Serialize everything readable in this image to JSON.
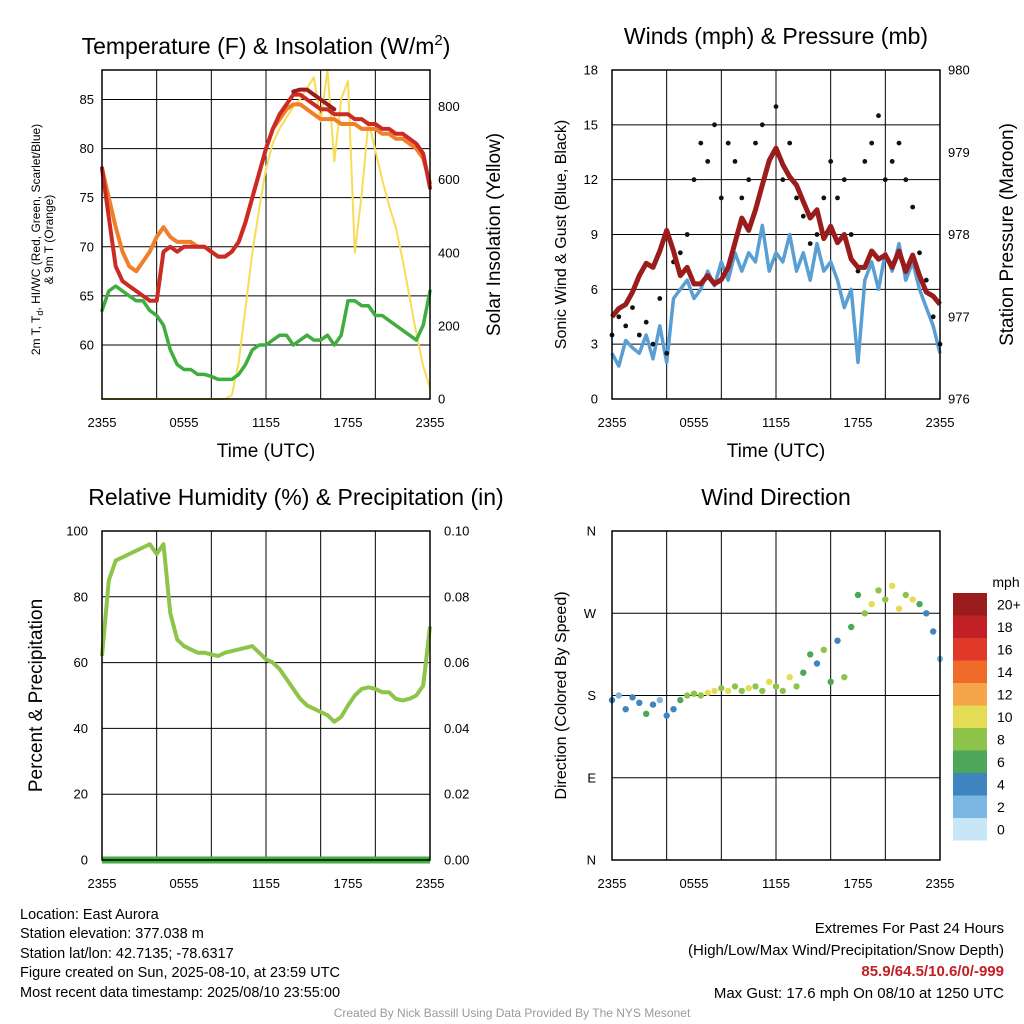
{
  "colors": {
    "temp": "#cc2a24",
    "dewpoint": "#3fae3f",
    "temp9m": "#f07f2a",
    "insolation": "#f7dc55",
    "gust": "#111111",
    "wind": "#5a9fd4",
    "pressure": "#9b1c1c",
    "rh": "#8ec44a",
    "precip": "#3fae3f",
    "grid": "#000000"
  },
  "chart_data": [
    {
      "id": "temp",
      "type": "line",
      "title": "Temperature (F) & Insolation (W/m",
      "title_sup": "2",
      "title_end": ")",
      "xlabel": "Time (UTC)",
      "ylabel_lines": [
        "2m T, T",
        "d",
        ", HI/WC (Red, Green, Scarlet/Blue)",
        "& 9m T (Orange)"
      ],
      "y2label": "Solar Insolation (Yellow)",
      "xticks": [
        "2355",
        "0555",
        "1155",
        "1755",
        "2355"
      ],
      "x": [
        0,
        0.5,
        1,
        1.5,
        2,
        2.5,
        3,
        3.5,
        4,
        4.5,
        5,
        5.5,
        6,
        6.5,
        7,
        7.5,
        8,
        8.5,
        9,
        9.5,
        10,
        10.5,
        11,
        11.5,
        12,
        12.5,
        13,
        13.5,
        14,
        14.5,
        15,
        15.5,
        16,
        16.5,
        17,
        17.5,
        18,
        18.5,
        19,
        19.5,
        20,
        20.5,
        21,
        21.5,
        22,
        22.5,
        23,
        23.5,
        24
      ],
      "ylim": [
        54.5,
        88
      ],
      "yticks": [
        60,
        65,
        70,
        75,
        80,
        85
      ],
      "y2lim": [
        0,
        900
      ],
      "y2ticks": [
        0,
        200,
        400,
        600,
        800
      ],
      "series": [
        {
          "name": "Temperature",
          "axis": "left",
          "color": "#cc2a24",
          "width": 4,
          "values": [
            78,
            73,
            68,
            66.5,
            66,
            65.5,
            65,
            64.5,
            64.5,
            69.5,
            70,
            69.5,
            70,
            70,
            70,
            70,
            69.5,
            69,
            69,
            69.5,
            70.5,
            72.5,
            75,
            77.5,
            80,
            82,
            83.5,
            84.5,
            85.5,
            85.5,
            85,
            84.5,
            84,
            84,
            83.5,
            83.5,
            83.5,
            83,
            83,
            82.5,
            82.5,
            82,
            82,
            81.5,
            81.5,
            81,
            80.5,
            79.5,
            76
          ]
        },
        {
          "name": "Heat Index",
          "axis": "left",
          "color": "#9b1c1c",
          "width": 4,
          "values": [
            null,
            null,
            null,
            null,
            null,
            null,
            null,
            null,
            null,
            null,
            null,
            null,
            null,
            null,
            null,
            null,
            null,
            null,
            null,
            null,
            null,
            null,
            null,
            null,
            null,
            null,
            null,
            null,
            85.8,
            86,
            86,
            85.5,
            85,
            84.5,
            84,
            null,
            null,
            null,
            null,
            null,
            null,
            null,
            null,
            null,
            null,
            null,
            null,
            null,
            null
          ]
        },
        {
          "name": "9m Temperature",
          "axis": "left",
          "color": "#f07f2a",
          "width": 4,
          "values": [
            78,
            75,
            72,
            69.5,
            68,
            67.5,
            68.5,
            69.5,
            71,
            72,
            71,
            70.5,
            70.5,
            70.5,
            70,
            70,
            69.5,
            69,
            69,
            69.5,
            70.5,
            72.5,
            75,
            77.5,
            80,
            82,
            83,
            84,
            84.5,
            84.5,
            84,
            83.5,
            83,
            83,
            83,
            82.5,
            82.5,
            82.5,
            82,
            82,
            82,
            81.5,
            81.5,
            81,
            81,
            80.5,
            80,
            79,
            76.5
          ]
        },
        {
          "name": "Dewpoint",
          "axis": "left",
          "color": "#3fae3f",
          "width": 3.5,
          "values": [
            63.5,
            65.5,
            66,
            65.5,
            65,
            64.5,
            64.5,
            63.5,
            63,
            62,
            59.5,
            58,
            57.5,
            57.5,
            57,
            57,
            56.8,
            56.5,
            56.5,
            56.5,
            57,
            58,
            59.5,
            60,
            60,
            60.5,
            61,
            61,
            60,
            60.5,
            61,
            60.5,
            60.5,
            61,
            60,
            61,
            64.5,
            64.5,
            64,
            64,
            63,
            63,
            62.5,
            62,
            61.5,
            61,
            60.5,
            62,
            65.5
          ]
        },
        {
          "name": "Solar Insolation",
          "axis": "right",
          "color": "#f7dc55",
          "width": 2,
          "values": [
            0,
            0,
            0,
            0,
            0,
            0,
            0,
            0,
            0,
            0,
            0,
            0,
            0,
            0,
            0,
            0,
            0,
            0,
            0,
            10,
            100,
            250,
            400,
            520,
            630,
            700,
            740,
            770,
            800,
            820,
            850,
            880,
            760,
            900,
            650,
            820,
            870,
            400,
            560,
            760,
            680,
            600,
            530,
            470,
            380,
            280,
            180,
            90,
            30
          ]
        }
      ]
    },
    {
      "id": "wind",
      "type": "line",
      "title": "Winds (mph) & Pressure (mb)",
      "xlabel": "Time (UTC)",
      "ylabel": "Sonic Wind & Gust (Blue, Black)",
      "y2label": "Station Pressure (Maroon)",
      "xticks": [
        "2355",
        "0555",
        "1155",
        "1755",
        "2355"
      ],
      "x": [
        0,
        0.5,
        1,
        1.5,
        2,
        2.5,
        3,
        3.5,
        4,
        4.5,
        5,
        5.5,
        6,
        6.5,
        7,
        7.5,
        8,
        8.5,
        9,
        9.5,
        10,
        10.5,
        11,
        11.5,
        12,
        12.5,
        13,
        13.5,
        14,
        14.5,
        15,
        15.5,
        16,
        16.5,
        17,
        17.5,
        18,
        18.5,
        19,
        19.5,
        20,
        20.5,
        21,
        21.5,
        22,
        22.5,
        23,
        23.5,
        24
      ],
      "ylim": [
        0,
        18
      ],
      "yticks": [
        0,
        3,
        6,
        9,
        12,
        15,
        18
      ],
      "y2lim": [
        976,
        980
      ],
      "y2ticks": [
        976,
        977,
        978,
        979,
        980
      ],
      "series": [
        {
          "name": "Sonic Wind",
          "axis": "left",
          "color": "#5a9fd4",
          "width": 3.5,
          "values": [
            2.5,
            1.8,
            3.2,
            2.8,
            2.5,
            3.5,
            2.2,
            4,
            2,
            5.5,
            6,
            6.5,
            5.5,
            6,
            7,
            6.2,
            7.5,
            6.5,
            8,
            7,
            8,
            7.5,
            9.5,
            7,
            8,
            7.5,
            9,
            7,
            8,
            6.5,
            8.5,
            7,
            7.5,
            6.5,
            5,
            6,
            2,
            6.5,
            7.5,
            6,
            8,
            7,
            8.5,
            6.5,
            7.5,
            6,
            5,
            4,
            2.5
          ]
        },
        {
          "name": "Station Pressure",
          "axis": "right",
          "color": "#9b1c1c",
          "width": 5,
          "values": [
            977,
            977.1,
            977.15,
            977.3,
            977.5,
            977.65,
            977.6,
            977.8,
            978.05,
            977.8,
            977.5,
            977.6,
            977.4,
            977.4,
            977.5,
            977.4,
            977.45,
            977.6,
            977.9,
            978.2,
            978.05,
            978.3,
            978.6,
            978.9,
            979.05,
            978.85,
            978.7,
            978.6,
            978.4,
            978.2,
            978.3,
            977.95,
            978.1,
            977.9,
            978.0,
            977.7,
            977.6,
            977.6,
            977.8,
            977.7,
            977.75,
            977.6,
            977.8,
            977.55,
            977.75,
            977.5,
            977.3,
            977.25,
            977.15
          ]
        },
        {
          "name": "Gust",
          "axis": "left",
          "color": "#111111",
          "style": "dots",
          "values": [
            3.5,
            4.5,
            4,
            5,
            3.5,
            4.2,
            3,
            5.5,
            2.5,
            7.5,
            8,
            9,
            12,
            14,
            13,
            15,
            11,
            14,
            13,
            11,
            12,
            14,
            15,
            13,
            16,
            12,
            14,
            11,
            10,
            8.5,
            9,
            11,
            13,
            11,
            12,
            9,
            7,
            13,
            14,
            15.5,
            12,
            13,
            14,
            12,
            10.5,
            8,
            6.5,
            4.5,
            3
          ]
        }
      ]
    },
    {
      "id": "rh",
      "type": "line",
      "title": "Relative Humidity (%) & Precipitation (in)",
      "ylabel": "Percent & Precipitation",
      "xticks": [
        "2355",
        "0555",
        "1155",
        "1755",
        "2355"
      ],
      "x": [
        0,
        0.5,
        1,
        1.5,
        2,
        2.5,
        3,
        3.5,
        4,
        4.5,
        5,
        5.5,
        6,
        6.5,
        7,
        7.5,
        8,
        8.5,
        9,
        9.5,
        10,
        10.5,
        11,
        11.5,
        12,
        12.5,
        13,
        13.5,
        14,
        14.5,
        15,
        15.5,
        16,
        16.5,
        17,
        17.5,
        18,
        18.5,
        19,
        19.5,
        20,
        20.5,
        21,
        21.5,
        22,
        22.5,
        23,
        23.5,
        24
      ],
      "ylim": [
        0,
        100
      ],
      "yticks": [
        0,
        20,
        40,
        60,
        80,
        100
      ],
      "y2lim": [
        0,
        0.1
      ],
      "y2ticks": [
        "0.00",
        "0.02",
        "0.04",
        "0.06",
        "0.08",
        "0.10"
      ],
      "series": [
        {
          "name": "Relative Humidity",
          "axis": "left",
          "color": "#8ec44a",
          "width": 4,
          "values": [
            62,
            85,
            91,
            92,
            93,
            94,
            95,
            96,
            93,
            96,
            75,
            67,
            65,
            64,
            63,
            63,
            62.5,
            62,
            63,
            63.5,
            64,
            64.5,
            65,
            63,
            61,
            60,
            58,
            55,
            52,
            49,
            47,
            46,
            45,
            44,
            42,
            43.5,
            47,
            50,
            52,
            52.5,
            52,
            51,
            51,
            49,
            48.5,
            49,
            50,
            53,
            71
          ]
        },
        {
          "name": "Precipitation",
          "axis": "right",
          "color": "#3fae3f",
          "width": 7,
          "values": [
            0,
            0,
            0,
            0,
            0,
            0,
            0,
            0,
            0,
            0,
            0,
            0,
            0,
            0,
            0,
            0,
            0,
            0,
            0,
            0,
            0,
            0,
            0,
            0,
            0,
            0,
            0,
            0,
            0,
            0,
            0,
            0,
            0,
            0,
            0,
            0,
            0,
            0,
            0,
            0,
            0,
            0,
            0,
            0,
            0,
            0,
            0,
            0,
            0
          ]
        }
      ]
    },
    {
      "id": "dir",
      "type": "scatter",
      "title": "Wind Direction",
      "ylabel": "Direction (Colored By Speed)",
      "xticks": [
        "2355",
        "0555",
        "1155",
        "1755",
        "2355"
      ],
      "ylim": [
        0,
        360
      ],
      "yticks": [
        "N",
        "E",
        "S",
        "W",
        "N"
      ],
      "x": [
        0,
        0.5,
        1,
        1.5,
        2,
        2.5,
        3,
        3.5,
        4,
        4.5,
        5,
        5.5,
        6,
        6.5,
        7,
        7.5,
        8,
        8.5,
        9,
        9.5,
        10,
        10.5,
        11,
        11.5,
        12,
        12.5,
        13,
        13.5,
        14,
        14.5,
        15,
        15.5,
        16,
        16.5,
        17,
        17.5,
        18,
        18.5,
        19,
        19.5,
        20,
        20.5,
        21,
        21.5,
        22,
        22.5,
        23,
        23.5,
        24
      ],
      "directions": [
        175,
        180,
        165,
        178,
        172,
        160,
        170,
        175,
        158,
        165,
        175,
        180,
        182,
        180,
        183,
        185,
        188,
        185,
        190,
        185,
        188,
        190,
        185,
        195,
        190,
        185,
        200,
        190,
        205,
        225,
        215,
        230,
        195,
        240,
        200,
        255,
        290,
        270,
        280,
        295,
        285,
        300,
        275,
        290,
        285,
        280,
        270,
        250,
        220
      ],
      "speeds": [
        3,
        2,
        4,
        3,
        4,
        5,
        3,
        2,
        4,
        3,
        6,
        7,
        8,
        7,
        9,
        10,
        8,
        9,
        7,
        8,
        9,
        8,
        7,
        9,
        8,
        7,
        9,
        8,
        6,
        5,
        4,
        7,
        6,
        4,
        8,
        6,
        5,
        7,
        9,
        8,
        7,
        9,
        10,
        8,
        9,
        6,
        4,
        3,
        2
      ],
      "colorbar": {
        "title": "mph",
        "labels": [
          "20+",
          "18",
          "16",
          "14",
          "12",
          "10",
          "8",
          "6",
          "4",
          "2",
          "0"
        ],
        "colors": [
          "#9b1c1c",
          "#c12027",
          "#e0392a",
          "#f06a2a",
          "#f7a54a",
          "#e5dc55",
          "#8ec44a",
          "#4ea65a",
          "#3f86c0",
          "#7ab8e3",
          "#c7e6f7"
        ]
      }
    }
  ],
  "footer": {
    "left": [
      "Location: East Aurora",
      "Station elevation: 377.038 m",
      "Station lat/lon: 42.7135; -78.6317",
      "Figure created on Sun, 2025-08-10, at 23:59 UTC",
      "Most recent data timestamp: 2025/08/10 23:55:00"
    ],
    "extremes_title": "Extremes For Past 24 Hours",
    "extremes_subtitle": "(High/Low/Max Wind/Precipitation/Snow Depth)",
    "extremes_values": "85.9/64.5/10.6/0/-999",
    "max_gust": "Max Gust: 17.6 mph On 08/10 at 1250 UTC",
    "credit": "Created By Nick Bassill Using Data Provided By The NYS Mesonet"
  }
}
